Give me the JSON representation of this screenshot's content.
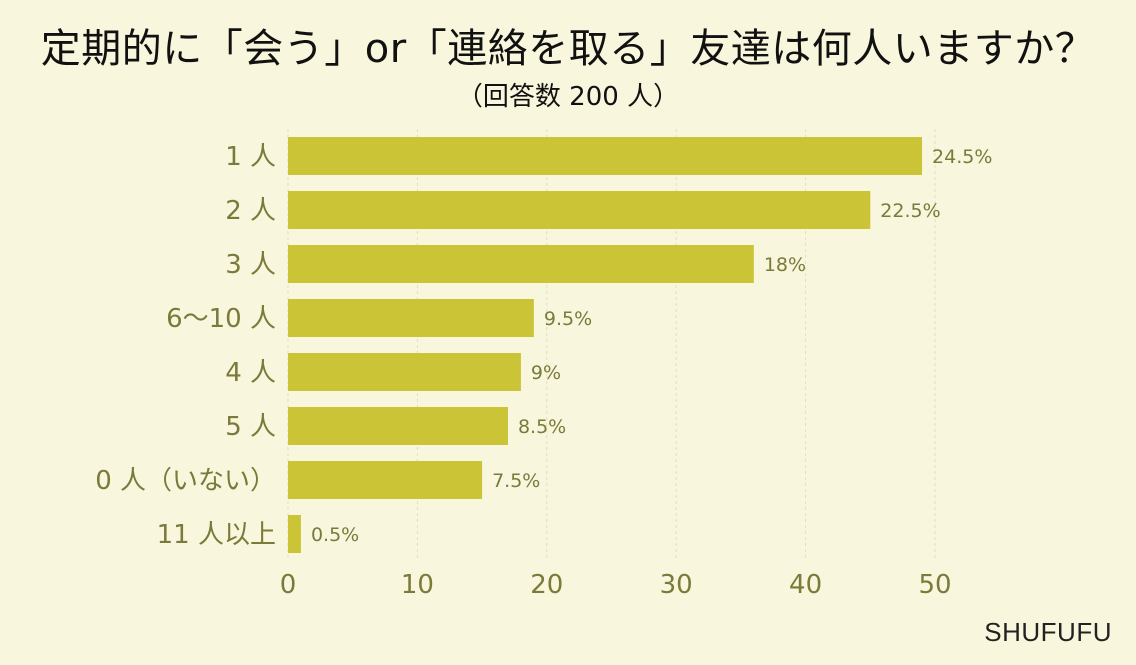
{
  "chart_data": {
    "type": "bar",
    "orientation": "horizontal",
    "title": "定期的に「会う」or「連絡を取る」友達は何人いますか？",
    "subtitle": "（回答数 200 人）",
    "categories": [
      "1 人",
      "2 人",
      "3 人",
      "6～10 人",
      "4 人",
      "5 人",
      "0 人（いない）",
      "11 人以上"
    ],
    "values": [
      49,
      45,
      36,
      19,
      18,
      17,
      15,
      1
    ],
    "data_labels": [
      "24.5%",
      "22.5%",
      "18%",
      "9.5%",
      "9%",
      "8.5%",
      "7.5%",
      "0.5%"
    ],
    "xlim": [
      0,
      50
    ],
    "xticks": [
      0,
      10,
      20,
      30,
      40,
      50
    ],
    "grid": "vertical dashed",
    "bar_color": "#cbc437",
    "label_color": "#7a7a3a"
  },
  "brand": "SHUFUFU"
}
